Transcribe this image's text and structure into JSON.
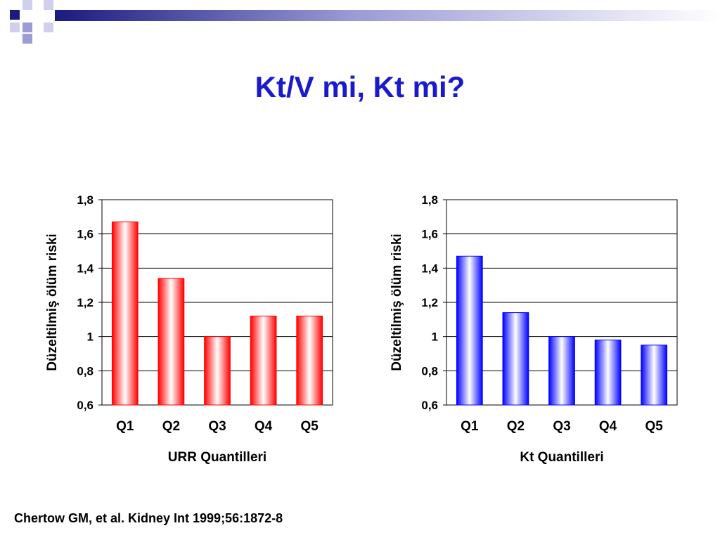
{
  "slide": {
    "title": "Kt/V mi, Kt mi?",
    "citation": "Chertow GM, et al. Kidney Int 1999;56:1872-8",
    "accent_color": "#1a1acc",
    "decor_colors": [
      "#1a1a80",
      "#9b9bd6",
      "#d0d0ee"
    ]
  },
  "chart_data": [
    {
      "type": "bar",
      "categories": [
        "Q1",
        "Q2",
        "Q3",
        "Q4",
        "Q5"
      ],
      "values": [
        1.67,
        1.34,
        1.0,
        1.12,
        1.12
      ],
      "xlabel": "URR Quantilleri",
      "ylabel": "Düzeltilmiş ölüm riski",
      "ylim": [
        0.6,
        1.8
      ],
      "yticks": [
        "0,6",
        "0,8",
        "1",
        "1,2",
        "1,4",
        "1,6",
        "1,8"
      ],
      "grid": true,
      "bar_color": "#ff0000"
    },
    {
      "type": "bar",
      "categories": [
        "Q1",
        "Q2",
        "Q3",
        "Q4",
        "Q5"
      ],
      "values": [
        1.47,
        1.14,
        1.0,
        0.98,
        0.95
      ],
      "xlabel": "Kt Quantilleri",
      "ylabel": "Düzeltilmiş ölüm riski",
      "ylim": [
        0.6,
        1.8
      ],
      "yticks": [
        "1,8",
        "1,6",
        "1,4",
        "1,2",
        "1",
        "0,8",
        "0,6"
      ],
      "grid": true,
      "bar_color": "#0000ff"
    }
  ]
}
